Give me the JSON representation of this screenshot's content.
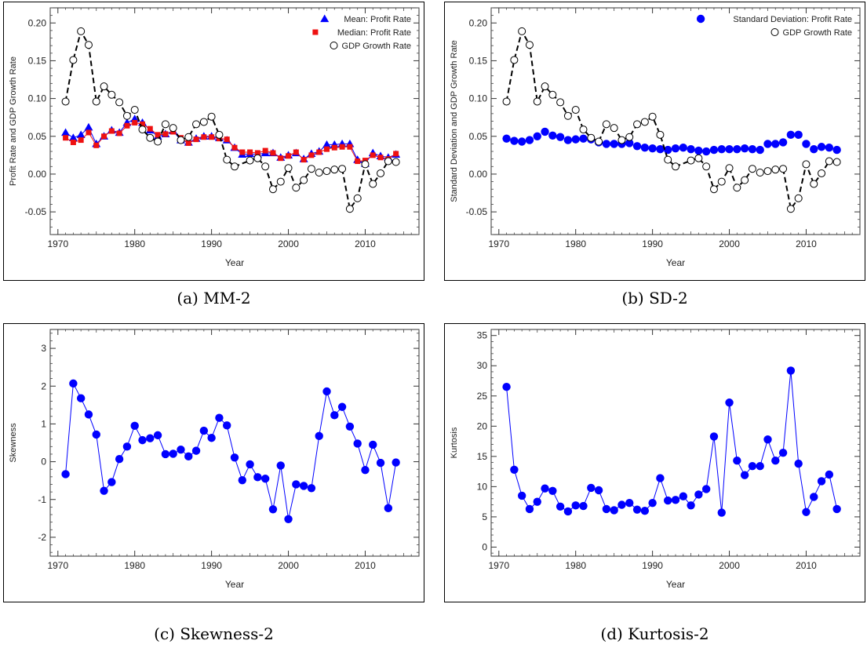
{
  "chart_data": [
    {
      "type": "scatter",
      "xlabel": "Year",
      "ylabel": "Profit Rate and GDP Growth Rate",
      "caption": "(a) MM-2",
      "xlim": [
        1969,
        2017
      ],
      "ylim": [
        -0.08,
        0.22
      ],
      "xticks": [
        1970,
        1980,
        1990,
        2000,
        2010
      ],
      "yticks": [
        -0.05,
        0.0,
        0.05,
        0.1,
        0.15,
        0.2
      ],
      "ytick_decimals": 2,
      "legend": "top-right",
      "x": [
        1971,
        1972,
        1973,
        1974,
        1975,
        1976,
        1977,
        1978,
        1979,
        1980,
        1981,
        1982,
        1983,
        1984,
        1985,
        1986,
        1987,
        1988,
        1989,
        1990,
        1991,
        1992,
        1993,
        1994,
        1995,
        1996,
        1997,
        1998,
        1999,
        2000,
        2001,
        2002,
        2003,
        2004,
        2005,
        2006,
        2007,
        2008,
        2009,
        2010,
        2011,
        2012,
        2013,
        2014
      ],
      "series": [
        {
          "name": "Mean: Profit Rate",
          "marker": "triangle",
          "color": "#0000ff",
          "line": "solid",
          "values": [
            0.055,
            0.048,
            0.052,
            0.062,
            0.04,
            0.05,
            0.058,
            0.055,
            0.068,
            0.073,
            0.068,
            0.058,
            0.05,
            0.053,
            0.057,
            0.045,
            0.042,
            0.047,
            0.05,
            0.05,
            0.048,
            0.045,
            0.035,
            0.026,
            0.027,
            0.026,
            0.028,
            0.028,
            0.022,
            0.025,
            0.028,
            0.02,
            0.027,
            0.03,
            0.039,
            0.039,
            0.04,
            0.04,
            0.019,
            0.014,
            0.028,
            0.024,
            0.022,
            0.026
          ]
        },
        {
          "name": "Median: Profit Rate",
          "marker": "square",
          "color": "#ee1111",
          "line": "solid",
          "values": [
            0.048,
            0.042,
            0.045,
            0.055,
            0.038,
            0.05,
            0.057,
            0.054,
            0.064,
            0.068,
            0.066,
            0.06,
            0.052,
            0.053,
            0.056,
            0.048,
            0.041,
            0.046,
            0.049,
            0.049,
            0.047,
            0.046,
            0.035,
            0.029,
            0.029,
            0.028,
            0.031,
            0.028,
            0.021,
            0.024,
            0.029,
            0.019,
            0.025,
            0.029,
            0.033,
            0.035,
            0.036,
            0.036,
            0.017,
            0.018,
            0.025,
            0.022,
            0.02,
            0.027
          ]
        },
        {
          "name": "GDP Growth Rate",
          "marker": "open-circle",
          "color": "#000000",
          "line": "dashed",
          "values": [
            0.096,
            0.151,
            0.189,
            0.171,
            0.096,
            0.116,
            0.105,
            0.095,
            0.077,
            0.085,
            0.059,
            0.048,
            0.043,
            0.066,
            0.061,
            0.045,
            0.049,
            0.066,
            0.069,
            0.076,
            0.052,
            0.019,
            0.01,
            null,
            0.018,
            0.021,
            0.01,
            -0.02,
            -0.01,
            0.008,
            -0.018,
            -0.008,
            0.007,
            0.002,
            0.004,
            0.006,
            0.007,
            -0.046,
            -0.032,
            0.013,
            -0.013,
            0.001,
            0.017,
            0.016
          ]
        }
      ]
    },
    {
      "type": "scatter",
      "xlabel": "Year",
      "ylabel": "Standard Deviation and GDP Growth Rate",
      "caption": "(b) SD-2",
      "xlim": [
        1969,
        2017
      ],
      "ylim": [
        -0.08,
        0.22
      ],
      "xticks": [
        1970,
        1980,
        1990,
        2000,
        2010
      ],
      "yticks": [
        -0.05,
        0.0,
        0.05,
        0.1,
        0.15,
        0.2
      ],
      "ytick_decimals": 2,
      "legend": "top-right",
      "x": [
        1971,
        1972,
        1973,
        1974,
        1975,
        1976,
        1977,
        1978,
        1979,
        1980,
        1981,
        1982,
        1983,
        1984,
        1985,
        1986,
        1987,
        1988,
        1989,
        1990,
        1991,
        1992,
        1993,
        1994,
        1995,
        1996,
        1997,
        1998,
        1999,
        2000,
        2001,
        2002,
        2003,
        2004,
        2005,
        2006,
        2007,
        2008,
        2009,
        2010,
        2011,
        2012,
        2013,
        2014
      ],
      "series": [
        {
          "name": "Standard Deviation: Profit Rate",
          "marker": "filled-circle",
          "color": "#0000ff",
          "line": "none",
          "values": [
            0.047,
            0.044,
            0.043,
            0.045,
            0.05,
            0.056,
            0.051,
            0.049,
            0.045,
            0.046,
            0.047,
            0.046,
            0.042,
            0.04,
            0.04,
            0.04,
            0.041,
            0.037,
            0.035,
            0.034,
            0.033,
            0.032,
            0.034,
            0.035,
            0.033,
            0.031,
            0.03,
            0.032,
            0.033,
            0.033,
            0.033,
            0.034,
            0.033,
            0.032,
            0.04,
            0.04,
            0.042,
            0.052,
            0.052,
            0.04,
            0.033,
            0.036,
            0.035,
            0.032
          ]
        },
        {
          "name": "GDP Growth Rate",
          "marker": "open-circle",
          "color": "#000000",
          "line": "dashed",
          "values": [
            0.096,
            0.151,
            0.189,
            0.171,
            0.096,
            0.116,
            0.105,
            0.095,
            0.077,
            0.085,
            0.059,
            0.048,
            0.043,
            0.066,
            0.061,
            0.045,
            0.049,
            0.066,
            0.069,
            0.076,
            0.052,
            0.019,
            0.01,
            null,
            0.018,
            0.021,
            0.01,
            -0.02,
            -0.01,
            0.008,
            -0.018,
            -0.008,
            0.007,
            0.002,
            0.004,
            0.006,
            0.007,
            -0.046,
            -0.032,
            0.013,
            -0.013,
            0.001,
            0.017,
            0.016
          ]
        }
      ]
    },
    {
      "type": "line",
      "xlabel": "Year",
      "ylabel": "Skewness",
      "caption": "(c) Skewness-2",
      "xlim": [
        1969,
        2017
      ],
      "ylim": [
        -2.5,
        3.5
      ],
      "xticks": [
        1970,
        1980,
        1990,
        2000,
        2010
      ],
      "yticks": [
        -2,
        -1,
        0,
        1,
        2,
        3
      ],
      "ytick_decimals": 0,
      "legend": "none",
      "x": [
        1971,
        1972,
        1973,
        1974,
        1975,
        1976,
        1977,
        1978,
        1979,
        1980,
        1981,
        1982,
        1983,
        1984,
        1985,
        1986,
        1987,
        1988,
        1989,
        1990,
        1991,
        1992,
        1993,
        1994,
        1995,
        1996,
        1997,
        1998,
        1999,
        2000,
        2001,
        2002,
        2003,
        2004,
        2005,
        2006,
        2007,
        2008,
        2009,
        2010,
        2011,
        2012,
        2013,
        2014
      ],
      "series": [
        {
          "marker": "filled-circle",
          "color": "#0000ff",
          "line": "solid",
          "values": [
            -0.33,
            2.07,
            1.68,
            1.25,
            0.72,
            -0.77,
            -0.54,
            0.07,
            0.4,
            0.95,
            0.57,
            0.62,
            0.7,
            0.2,
            0.21,
            0.32,
            0.14,
            0.29,
            0.82,
            0.63,
            1.16,
            0.96,
            0.11,
            -0.49,
            -0.07,
            -0.41,
            -0.45,
            -1.26,
            -0.1,
            -1.52,
            -0.6,
            -0.64,
            -0.7,
            0.68,
            1.86,
            1.23,
            1.45,
            0.93,
            0.48,
            -0.22,
            0.45,
            -0.03,
            -1.23,
            -0.02
          ]
        }
      ]
    },
    {
      "type": "line",
      "xlabel": "Year",
      "ylabel": "Kurtosis",
      "caption": "(d) Kurtosis-2",
      "xlim": [
        1969,
        2017
      ],
      "ylim": [
        -1.5,
        36
      ],
      "xticks": [
        1970,
        1980,
        1990,
        2000,
        2010
      ],
      "yticks": [
        0,
        5,
        10,
        15,
        20,
        25,
        30,
        35
      ],
      "ytick_decimals": 0,
      "legend": "none",
      "x": [
        1971,
        1972,
        1973,
        1974,
        1975,
        1976,
        1977,
        1978,
        1979,
        1980,
        1981,
        1982,
        1983,
        1984,
        1985,
        1986,
        1987,
        1988,
        1989,
        1990,
        1991,
        1992,
        1993,
        1994,
        1995,
        1996,
        1997,
        1998,
        1999,
        2000,
        2001,
        2002,
        2003,
        2004,
        2005,
        2006,
        2007,
        2008,
        2009,
        2010,
        2011,
        2012,
        2013,
        2014
      ],
      "series": [
        {
          "marker": "filled-circle",
          "color": "#0000ff",
          "line": "solid",
          "values": [
            26.5,
            12.8,
            8.5,
            6.3,
            7.5,
            9.7,
            9.3,
            6.7,
            5.9,
            6.9,
            6.8,
            9.8,
            9.4,
            6.3,
            6.1,
            7.0,
            7.3,
            6.2,
            6.0,
            7.3,
            11.4,
            7.7,
            7.8,
            8.4,
            6.9,
            8.7,
            9.6,
            18.3,
            5.7,
            23.9,
            14.3,
            11.9,
            13.4,
            13.4,
            17.8,
            14.3,
            15.6,
            29.2,
            13.8,
            5.8,
            8.3,
            10.9,
            12.0,
            6.3
          ]
        }
      ]
    }
  ]
}
